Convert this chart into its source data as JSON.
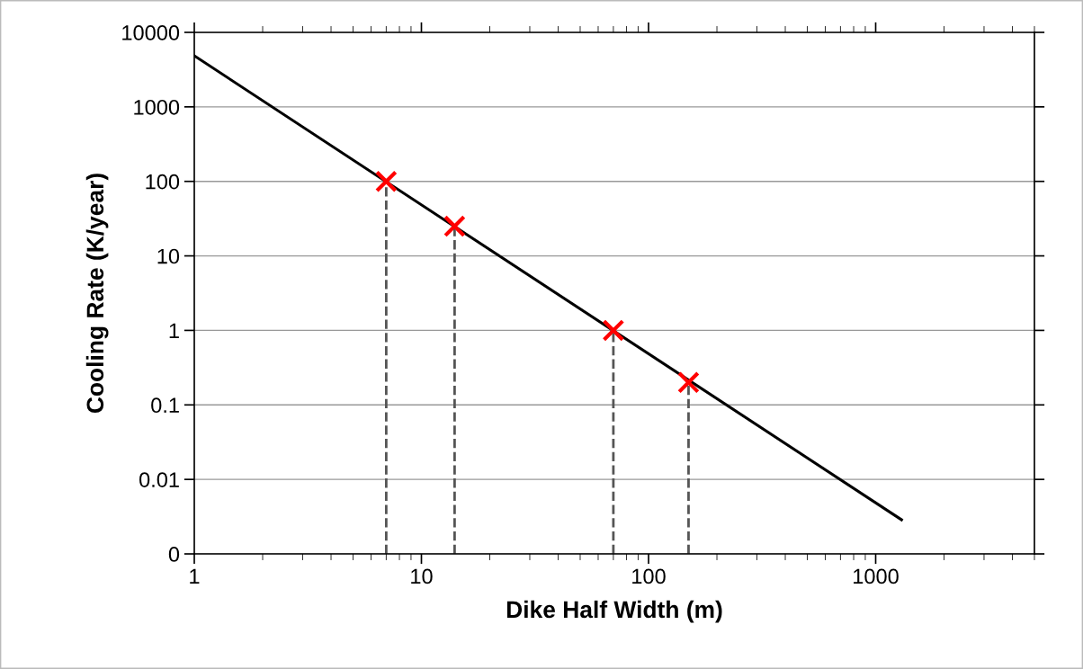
{
  "chart_data": {
    "type": "line",
    "xlabel": "Dike Half Width (m)",
    "ylabel": "Cooling Rate (K/year)",
    "log": "xy",
    "grid": "y",
    "legend": false,
    "xlim": [
      1,
      5000
    ],
    "xticks": [
      1,
      10,
      100,
      1000
    ],
    "ylim": [
      0.001,
      10000
    ],
    "yticks": [
      {
        "value": 0.001,
        "label": "0"
      },
      0.01,
      0.1,
      1,
      10,
      100,
      1000,
      10000
    ],
    "series": [
      {
        "color": "#000000",
        "x": [
          1,
          1300
        ],
        "values": [
          4850,
          0.00287
        ],
        "marker": "none",
        "line_style": "solid"
      },
      {
        "type": "scatter",
        "color": "#ff0000",
        "x": [
          7,
          14,
          70,
          150
        ],
        "values": [
          100,
          25,
          1,
          0.2
        ],
        "marker": "cross"
      }
    ],
    "ref_lines": [
      {
        "axis": "x",
        "value": 7,
        "color": "#555555",
        "line_style": "dashed"
      },
      {
        "axis": "x",
        "value": 14,
        "color": "#555555",
        "line_style": "dashed"
      },
      {
        "axis": "x",
        "value": 70,
        "color": "#555555",
        "line_style": "dashed"
      },
      {
        "axis": "x",
        "value": 150,
        "color": "#555555",
        "line_style": "dashed"
      }
    ]
  }
}
